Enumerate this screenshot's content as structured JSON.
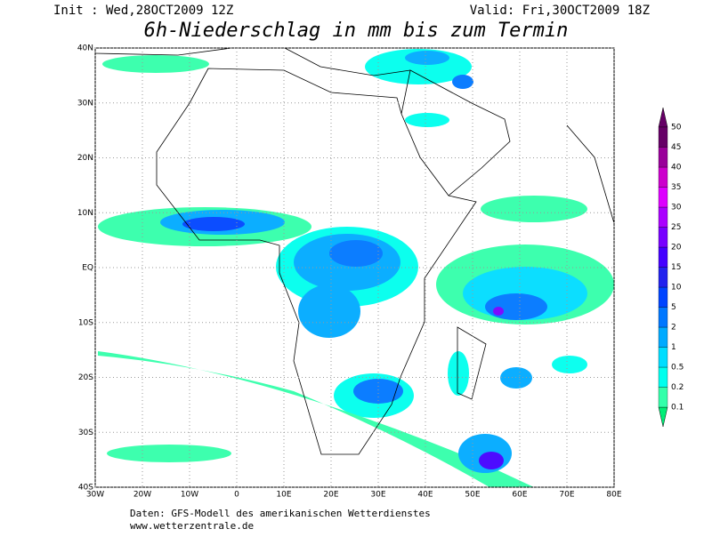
{
  "header": {
    "init": "Init : Wed,28OCT2009 12Z",
    "valid": "Valid: Fri,30OCT2009 18Z"
  },
  "title": "6h-Niederschlag in mm bis zum Termin",
  "map": {
    "xlim": [
      -30,
      80
    ],
    "ylim": [
      -40,
      40
    ],
    "xticks": [
      {
        "value": -30,
        "label": "30W"
      },
      {
        "value": -20,
        "label": "20W"
      },
      {
        "value": -10,
        "label": "10W"
      },
      0,
      {
        "value": 10,
        "label": "10E"
      },
      {
        "value": 20,
        "label": "20E"
      },
      {
        "value": 30,
        "label": "30E"
      },
      {
        "value": 40,
        "label": "40E"
      },
      {
        "value": 50,
        "label": "50E"
      },
      {
        "value": 60,
        "label": "60E"
      },
      {
        "value": 70,
        "label": "70E"
      },
      {
        "value": 80,
        "label": "80E"
      }
    ],
    "yticks": [
      {
        "value": -40,
        "label": "40S"
      },
      {
        "value": -30,
        "label": "30S"
      },
      {
        "value": -20,
        "label": "20S"
      },
      {
        "value": -10,
        "label": "10S"
      },
      {
        "value": 0,
        "label": "EQ"
      },
      {
        "value": 10,
        "label": "10N"
      },
      {
        "value": 20,
        "label": "20N"
      },
      {
        "value": 30,
        "label": "30N"
      },
      {
        "value": 40,
        "label": "40N"
      }
    ],
    "grid": true
  },
  "colorbar": {
    "levels": [
      0.1,
      0.2,
      0.5,
      1,
      2,
      5,
      10,
      15,
      20,
      25,
      30,
      35,
      40,
      45,
      50
    ],
    "colors": [
      "#00ee77",
      "#33ffaa",
      "#00ffee",
      "#00ddff",
      "#00aaff",
      "#0077ff",
      "#0044ff",
      "#2222ee",
      "#4400ff",
      "#7700ff",
      "#aa00ff",
      "#dd00ff",
      "#cc00cc",
      "#990099",
      "#660066"
    ]
  },
  "footer": {
    "line1": "Daten: GFS-Modell des amerikanischen Wetterdienstes",
    "line2": "www.wetterzentrale.de"
  }
}
